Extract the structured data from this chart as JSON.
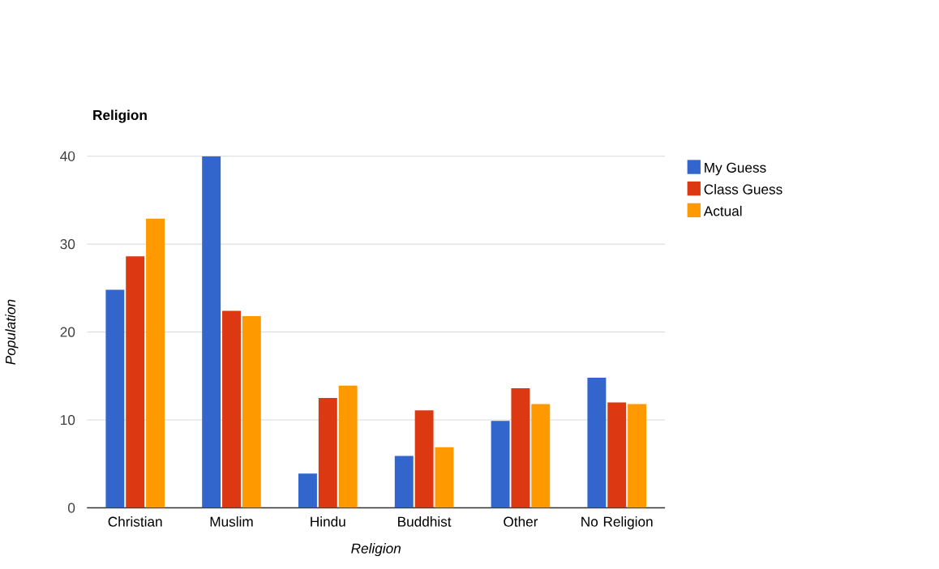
{
  "chart_data": {
    "type": "bar",
    "title": "Religion",
    "xlabel": "Religion",
    "ylabel": "Population",
    "categories": [
      "Christian",
      "Muslim",
      "Hindu",
      "Buddhist",
      "Other",
      "No Religion"
    ],
    "series": [
      {
        "name": "My Guess",
        "color": "#3366cc",
        "values": [
          24.8,
          40,
          3.9,
          5.9,
          9.9,
          14.8
        ]
      },
      {
        "name": "Class Guess",
        "color": "#dc3912",
        "values": [
          28.6,
          22.4,
          12.5,
          11.1,
          13.6,
          12.0
        ]
      },
      {
        "name": "Actual",
        "color": "#ff9900",
        "values": [
          32.9,
          21.8,
          13.9,
          6.9,
          11.8,
          11.8
        ]
      }
    ],
    "ylim": [
      0,
      40
    ],
    "yticks": [
      0,
      10,
      20,
      30,
      40
    ],
    "grid": "y",
    "legend": "right"
  }
}
